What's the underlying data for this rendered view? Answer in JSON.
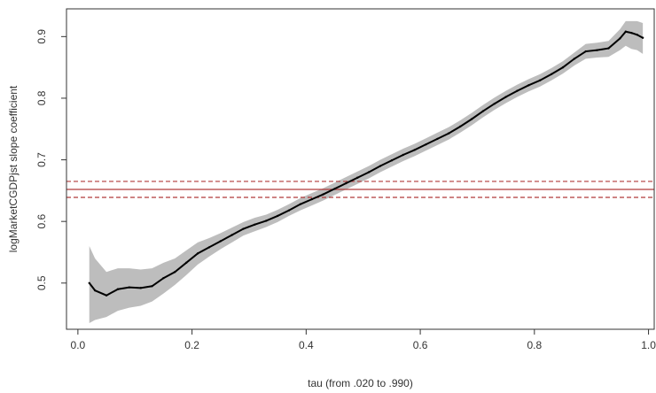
{
  "chart_data": {
    "type": "line",
    "xlabel": "tau (from .020 to .990)",
    "ylabel": "logMarketCGDPjst slope coefficient",
    "xlim": [
      -0.02,
      1.01
    ],
    "ylim": [
      0.425,
      0.945
    ],
    "x_ticks": [
      0.0,
      0.2,
      0.4,
      0.6,
      0.8,
      1.0
    ],
    "x_tick_labels": [
      "0.0",
      "0.2",
      "0.4",
      "0.6",
      "0.8",
      "1.0"
    ],
    "y_ticks": [
      0.5,
      0.6,
      0.7,
      0.8,
      0.9
    ],
    "y_tick_labels": [
      "0.5",
      "0.6",
      "0.7",
      "0.8",
      "0.9"
    ],
    "grid": false,
    "series": [
      {
        "role": "quantile-estimate",
        "style": "black line with point markers",
        "color": "#000000",
        "x": [
          0.02,
          0.03,
          0.05,
          0.07,
          0.09,
          0.11,
          0.13,
          0.15,
          0.17,
          0.19,
          0.21,
          0.23,
          0.25,
          0.27,
          0.29,
          0.31,
          0.33,
          0.35,
          0.37,
          0.39,
          0.41,
          0.43,
          0.45,
          0.47,
          0.49,
          0.51,
          0.53,
          0.55,
          0.57,
          0.59,
          0.61,
          0.63,
          0.65,
          0.67,
          0.69,
          0.71,
          0.73,
          0.75,
          0.77,
          0.79,
          0.81,
          0.83,
          0.85,
          0.87,
          0.89,
          0.91,
          0.93,
          0.95,
          0.96,
          0.97,
          0.98,
          0.99
        ],
        "y": [
          0.5,
          0.488,
          0.48,
          0.49,
          0.493,
          0.492,
          0.495,
          0.508,
          0.518,
          0.533,
          0.548,
          0.558,
          0.568,
          0.578,
          0.588,
          0.595,
          0.601,
          0.609,
          0.618,
          0.628,
          0.636,
          0.644,
          0.653,
          0.662,
          0.671,
          0.68,
          0.69,
          0.699,
          0.708,
          0.716,
          0.725,
          0.734,
          0.743,
          0.754,
          0.766,
          0.779,
          0.791,
          0.802,
          0.812,
          0.821,
          0.829,
          0.839,
          0.85,
          0.864,
          0.876,
          0.878,
          0.881,
          0.897,
          0.908,
          0.906,
          0.903,
          0.898
        ]
      },
      {
        "role": "confidence-band",
        "style": "gray shaded band",
        "color": "#bdbdbd",
        "x": [
          0.02,
          0.03,
          0.05,
          0.07,
          0.09,
          0.11,
          0.13,
          0.15,
          0.17,
          0.19,
          0.21,
          0.23,
          0.25,
          0.27,
          0.29,
          0.31,
          0.33,
          0.35,
          0.37,
          0.39,
          0.41,
          0.43,
          0.45,
          0.47,
          0.49,
          0.51,
          0.53,
          0.55,
          0.57,
          0.59,
          0.61,
          0.63,
          0.65,
          0.67,
          0.69,
          0.71,
          0.73,
          0.75,
          0.77,
          0.79,
          0.81,
          0.83,
          0.85,
          0.87,
          0.89,
          0.91,
          0.93,
          0.95,
          0.96,
          0.97,
          0.98,
          0.99
        ],
        "lower": [
          0.435,
          0.44,
          0.445,
          0.455,
          0.46,
          0.463,
          0.47,
          0.483,
          0.497,
          0.513,
          0.53,
          0.543,
          0.555,
          0.566,
          0.577,
          0.584,
          0.591,
          0.599,
          0.609,
          0.618,
          0.626,
          0.634,
          0.643,
          0.652,
          0.661,
          0.67,
          0.68,
          0.689,
          0.698,
          0.706,
          0.715,
          0.724,
          0.733,
          0.744,
          0.756,
          0.769,
          0.781,
          0.792,
          0.802,
          0.811,
          0.819,
          0.829,
          0.84,
          0.853,
          0.864,
          0.866,
          0.867,
          0.878,
          0.885,
          0.88,
          0.878,
          0.872
        ],
        "upper": [
          0.56,
          0.54,
          0.518,
          0.524,
          0.524,
          0.522,
          0.524,
          0.533,
          0.54,
          0.553,
          0.566,
          0.573,
          0.581,
          0.59,
          0.599,
          0.606,
          0.611,
          0.619,
          0.628,
          0.638,
          0.646,
          0.654,
          0.663,
          0.672,
          0.681,
          0.69,
          0.7,
          0.709,
          0.718,
          0.726,
          0.735,
          0.744,
          0.753,
          0.764,
          0.776,
          0.789,
          0.801,
          0.812,
          0.822,
          0.831,
          0.839,
          0.849,
          0.86,
          0.874,
          0.888,
          0.89,
          0.893,
          0.912,
          0.925,
          0.925,
          0.925,
          0.922
        ]
      },
      {
        "role": "ols-estimate",
        "style": "solid red horizontal line",
        "color": "#b03a3a",
        "y": 0.652
      },
      {
        "role": "ols-confidence-bounds",
        "style": "dashed red horizontal lines",
        "color": "#b03a3a",
        "y": [
          0.639,
          0.665
        ]
      }
    ]
  }
}
